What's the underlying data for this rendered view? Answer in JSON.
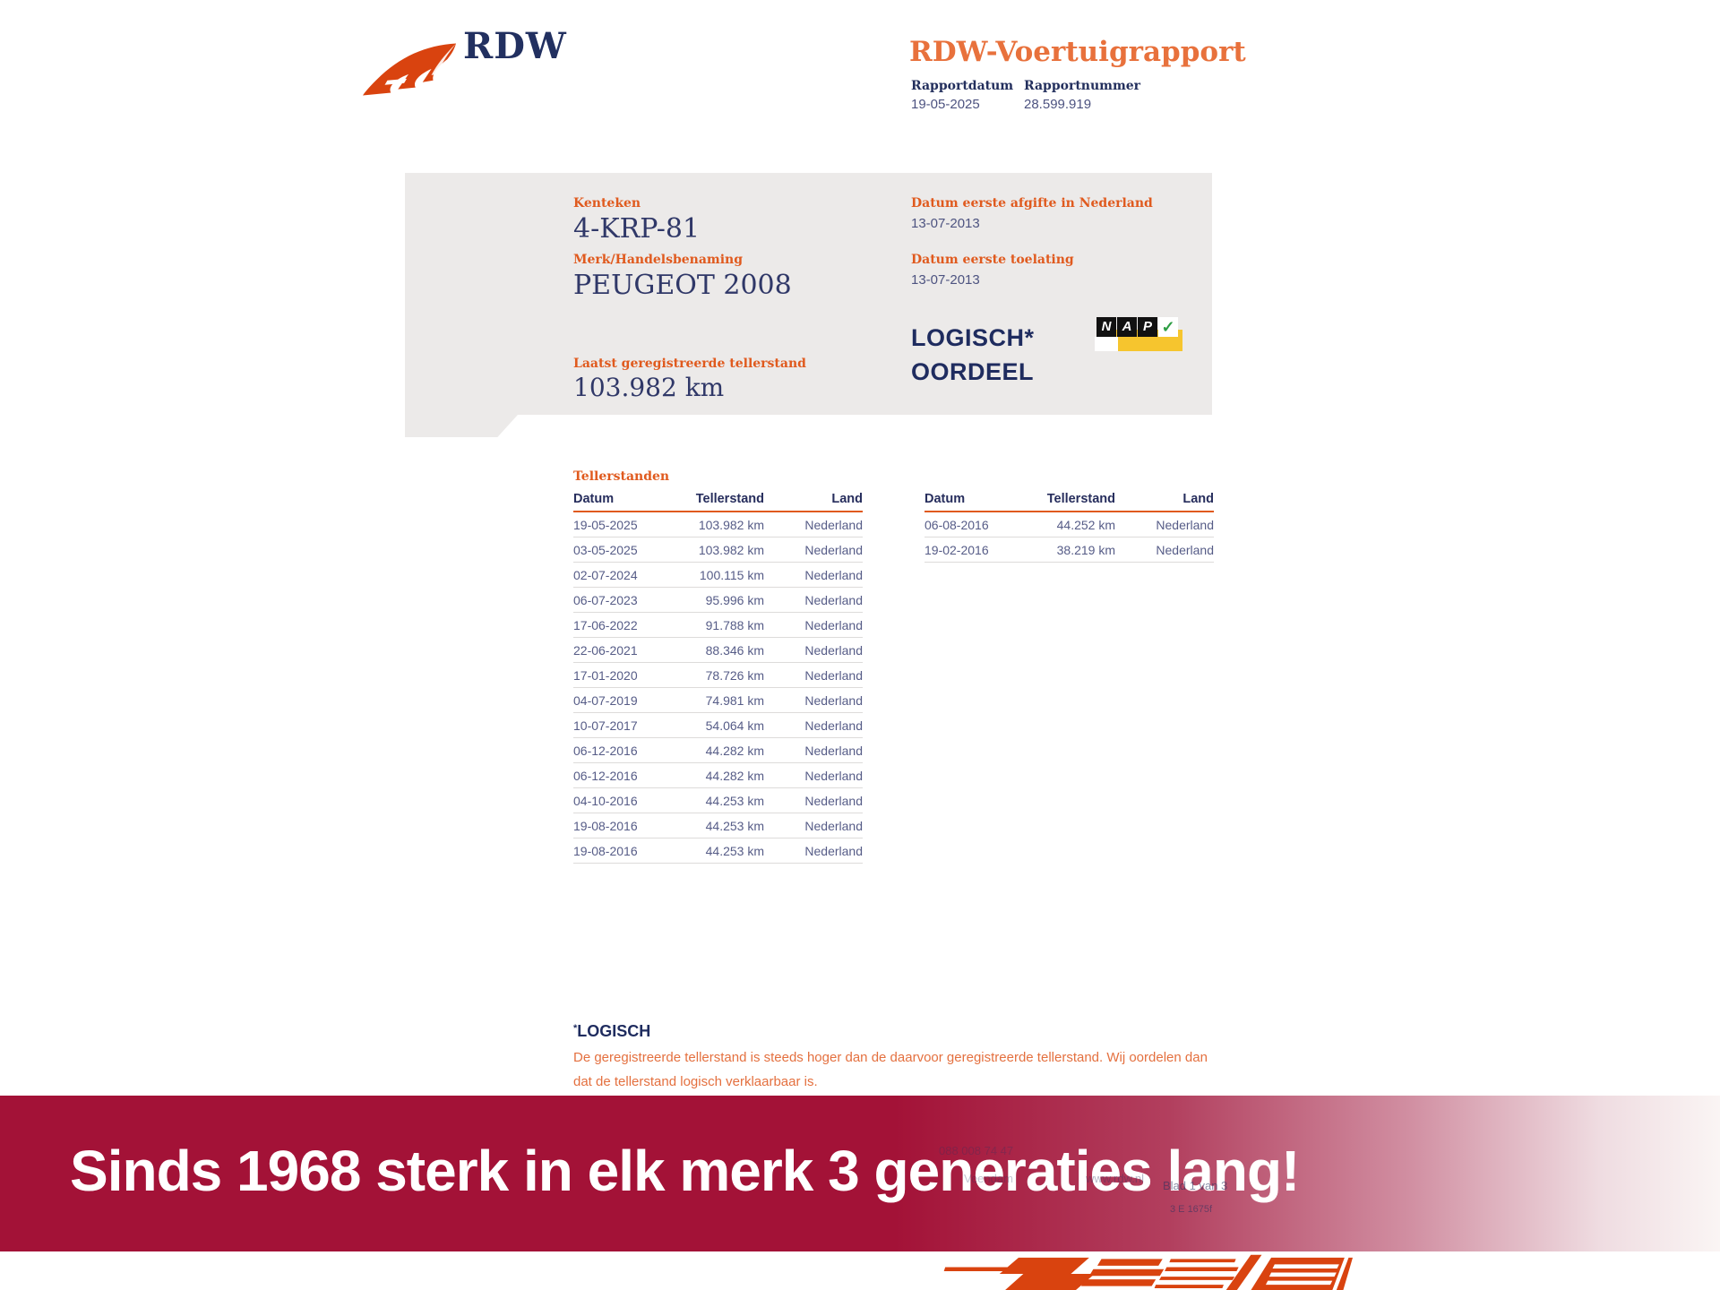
{
  "header": {
    "brand": "RDW",
    "title": "RDW-Voertuigrapport",
    "report_date_label": "Rapportdatum",
    "report_date": "19-05-2025",
    "report_number_label": "Rapportnummer",
    "report_number": "28.599.919"
  },
  "summary": {
    "kenteken_label": "Kenteken",
    "kenteken": "4-KRP-81",
    "merk_label": "Merk/Handelsbenaming",
    "merk": "PEUGEOT 2008",
    "laatst_label": "Laatst geregistreerde tellerstand",
    "laatst": "103.982 km",
    "afgifte_label": "Datum eerste afgifte in Nederland",
    "afgifte": "13-07-2013",
    "toelating_label": "Datum eerste toelating",
    "toelating": "13-07-2013",
    "oordeel_line1": "LOGISCH*",
    "oordeel_line2": "OORDEEL",
    "nap_letters": [
      "N",
      "A",
      "P"
    ],
    "nap_check": "✓"
  },
  "tables": {
    "section_title": "Tellerstanden",
    "columns": [
      "Datum",
      "Tellerstand",
      "Land"
    ],
    "left_rows": [
      [
        "19-05-2025",
        "103.982 km",
        "Nederland"
      ],
      [
        "03-05-2025",
        "103.982 km",
        "Nederland"
      ],
      [
        "02-07-2024",
        "100.115 km",
        "Nederland"
      ],
      [
        "06-07-2023",
        "95.996 km",
        "Nederland"
      ],
      [
        "17-06-2022",
        "91.788 km",
        "Nederland"
      ],
      [
        "22-06-2021",
        "88.346 km",
        "Nederland"
      ],
      [
        "17-01-2020",
        "78.726 km",
        "Nederland"
      ],
      [
        "04-07-2019",
        "74.981 km",
        "Nederland"
      ],
      [
        "10-07-2017",
        "54.064 km",
        "Nederland"
      ],
      [
        "06-12-2016",
        "44.282 km",
        "Nederland"
      ],
      [
        "06-12-2016",
        "44.282 km",
        "Nederland"
      ],
      [
        "04-10-2016",
        "44.253 km",
        "Nederland"
      ],
      [
        "19-08-2016",
        "44.253 km",
        "Nederland"
      ],
      [
        "19-08-2016",
        "44.253 km",
        "Nederland"
      ]
    ],
    "right_rows": [
      [
        "06-08-2016",
        "44.252 km",
        "Nederland"
      ],
      [
        "19-02-2016",
        "38.219 km",
        "Nederland"
      ]
    ]
  },
  "footnote": {
    "asterisk": "*",
    "title": "LOGISCH",
    "line1": "De geregistreerde tellerstand is steeds hoger dan de daarvoor geregistreerde tellerstand. Wij oordelen dan",
    "line2": "dat de tellerstand logisch verklaarbaar is."
  },
  "banner": {
    "text": "Sinds 1968 sterk in elk merk 3 generaties lang!",
    "faint_phone": "088 008 74 47",
    "faint_city": "Veendam",
    "faint_site": "www.rdw.nl",
    "faint_page": "Blad 1 van 3",
    "faint_code": "3 E 1675f"
  },
  "colors": {
    "accent_orange": "#E05A1E",
    "title_orange": "#E8713C",
    "navy": "#223060",
    "banner_red": "#A31237",
    "card_gray": "#ECEAE9",
    "nap_yellow": "#F6C52E",
    "logo_orange": "#D9430F"
  }
}
